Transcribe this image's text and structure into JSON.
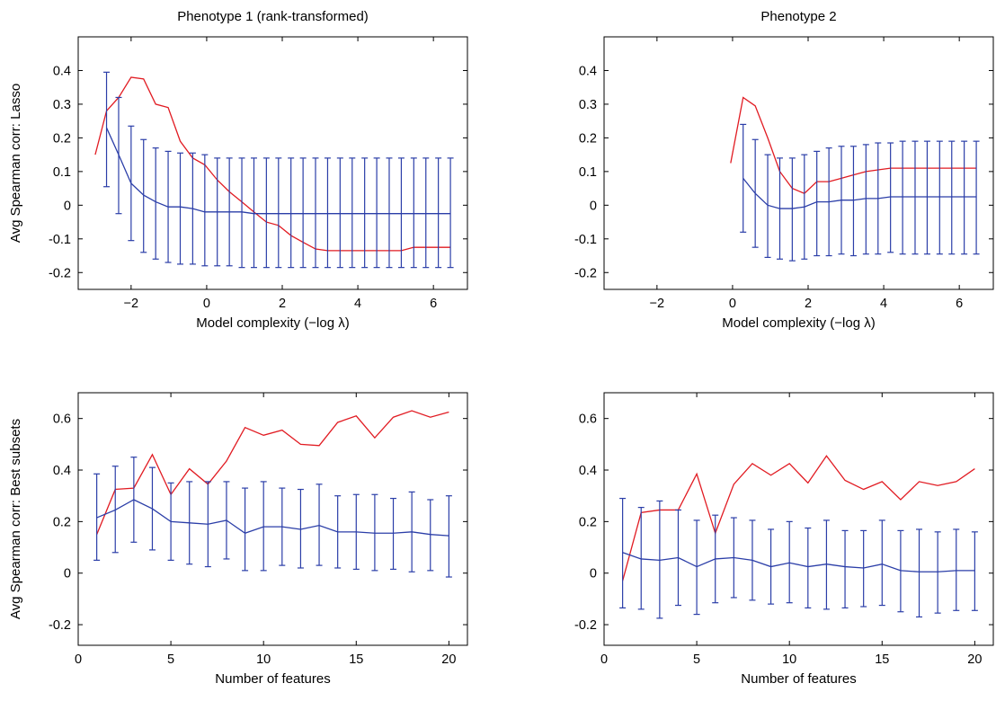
{
  "chart_data": [
    {
      "type": "line",
      "title": "Phenotype 1 (rank-transformed)",
      "xlabel": "Model complexity (−log λ)",
      "ylabel": "Avg Spearman corr: Lasso",
      "xlim": [
        -3.4,
        6.9
      ],
      "ylim": [
        -0.25,
        0.5
      ],
      "xticks": [
        -2,
        0,
        2,
        4,
        6
      ],
      "yticks": [
        -0.2,
        -0.1,
        0,
        0.1,
        0.2,
        0.3,
        0.4
      ],
      "ytick_labels": [
        "-0.2",
        "-0.1",
        "0",
        "0.1",
        "0.2",
        "0.3",
        "0.4"
      ],
      "xtick_labels": [
        "−2",
        "0",
        "2",
        "4",
        "6"
      ],
      "grid": false,
      "colors": {
        "red": "#e11b22",
        "blue": "#2b3ea8"
      },
      "series": [
        {
          "color": "red",
          "x": [
            -2.95,
            -2.65,
            -2.33,
            -2.0,
            -1.67,
            -1.35,
            -1.02,
            -0.7,
            -0.37,
            -0.05,
            0.28,
            0.6,
            0.93,
            1.25,
            1.58,
            1.9,
            2.23,
            2.55,
            2.88,
            3.2,
            3.53,
            3.85,
            4.18,
            4.5,
            4.83,
            5.15,
            5.48,
            5.8,
            6.13,
            6.45
          ],
          "y": [
            0.15,
            0.28,
            0.32,
            0.38,
            0.375,
            0.3,
            0.29,
            0.19,
            0.14,
            0.12,
            0.075,
            0.04,
            0.01,
            -0.02,
            -0.05,
            -0.06,
            -0.09,
            -0.11,
            -0.13,
            -0.135,
            -0.135,
            -0.135,
            -0.135,
            -0.135,
            -0.135,
            -0.135,
            -0.125,
            -0.125,
            -0.125,
            -0.125
          ]
        },
        {
          "color": "blue",
          "error_bars": true,
          "x": [
            -2.65,
            -2.33,
            -2.0,
            -1.67,
            -1.35,
            -1.02,
            -0.7,
            -0.37,
            -0.05,
            0.28,
            0.6,
            0.93,
            1.25,
            1.58,
            1.9,
            2.23,
            2.55,
            2.88,
            3.2,
            3.53,
            3.85,
            4.18,
            4.5,
            4.83,
            5.15,
            5.48,
            5.8,
            6.13,
            6.45
          ],
          "y": [
            0.23,
            0.15,
            0.065,
            0.03,
            0.01,
            -0.005,
            -0.005,
            -0.01,
            -0.02,
            -0.02,
            -0.02,
            -0.02,
            -0.025,
            -0.025,
            -0.025,
            -0.025,
            -0.025,
            -0.025,
            -0.025,
            -0.025,
            -0.025,
            -0.025,
            -0.025,
            -0.025,
            -0.025,
            -0.025,
            -0.025,
            -0.025,
            -0.025
          ],
          "upper": [
            0.395,
            0.32,
            0.235,
            0.195,
            0.17,
            0.16,
            0.155,
            0.155,
            0.15,
            0.14,
            0.14,
            0.14,
            0.14,
            0.14,
            0.14,
            0.14,
            0.14,
            0.14,
            0.14,
            0.14,
            0.14,
            0.14,
            0.14,
            0.14,
            0.14,
            0.14,
            0.14,
            0.14,
            0.14
          ],
          "lower": [
            0.055,
            -0.025,
            -0.105,
            -0.14,
            -0.16,
            -0.17,
            -0.175,
            -0.175,
            -0.18,
            -0.18,
            -0.18,
            -0.185,
            -0.185,
            -0.185,
            -0.185,
            -0.185,
            -0.185,
            -0.185,
            -0.185,
            -0.185,
            -0.185,
            -0.185,
            -0.185,
            -0.185,
            -0.185,
            -0.185,
            -0.185,
            -0.185,
            -0.185
          ]
        }
      ]
    },
    {
      "type": "line",
      "title": "Phenotype 2",
      "xlabel": "Model complexity (−log λ)",
      "ylabel": "",
      "xlim": [
        -3.4,
        6.9
      ],
      "ylim": [
        -0.25,
        0.5
      ],
      "xticks": [
        -2,
        0,
        2,
        4,
        6
      ],
      "yticks": [
        -0.2,
        -0.1,
        0,
        0.1,
        0.2,
        0.3,
        0.4
      ],
      "ytick_labels": [
        "-0.2",
        "-0.1",
        "0",
        "0.1",
        "0.2",
        "0.3",
        "0.4"
      ],
      "xtick_labels": [
        "−2",
        "0",
        "2",
        "4",
        "6"
      ],
      "grid": false,
      "colors": {
        "red": "#e11b22",
        "blue": "#2b3ea8"
      },
      "series": [
        {
          "color": "red",
          "x": [
            -0.05,
            0.28,
            0.6,
            0.93,
            1.25,
            1.58,
            1.9,
            2.23,
            2.55,
            2.88,
            3.2,
            3.53,
            3.85,
            4.18,
            4.5,
            4.83,
            5.15,
            5.48,
            5.8,
            6.13,
            6.45
          ],
          "y": [
            0.125,
            0.32,
            0.295,
            0.2,
            0.1,
            0.05,
            0.035,
            0.07,
            0.07,
            0.08,
            0.09,
            0.1,
            0.105,
            0.11,
            0.11,
            0.11,
            0.11,
            0.11,
            0.11,
            0.11,
            0.11
          ]
        },
        {
          "color": "blue",
          "error_bars": true,
          "x": [
            0.28,
            0.6,
            0.93,
            1.25,
            1.58,
            1.9,
            2.23,
            2.55,
            2.88,
            3.2,
            3.53,
            3.85,
            4.18,
            4.5,
            4.83,
            5.15,
            5.48,
            5.8,
            6.13,
            6.45
          ],
          "y": [
            0.08,
            0.035,
            0.0,
            -0.01,
            -0.01,
            -0.005,
            0.01,
            0.01,
            0.015,
            0.015,
            0.02,
            0.02,
            0.025,
            0.025,
            0.025,
            0.025,
            0.025,
            0.025,
            0.025,
            0.025
          ],
          "upper": [
            0.24,
            0.195,
            0.15,
            0.14,
            0.14,
            0.15,
            0.16,
            0.17,
            0.175,
            0.175,
            0.18,
            0.185,
            0.185,
            0.19,
            0.19,
            0.19,
            0.19,
            0.19,
            0.19,
            0.19
          ],
          "lower": [
            -0.08,
            -0.125,
            -0.155,
            -0.16,
            -0.165,
            -0.16,
            -0.15,
            -0.15,
            -0.145,
            -0.15,
            -0.145,
            -0.145,
            -0.14,
            -0.145,
            -0.145,
            -0.145,
            -0.145,
            -0.145,
            -0.145,
            -0.145
          ]
        }
      ]
    },
    {
      "type": "line",
      "title": "",
      "xlabel": "Number of features",
      "ylabel": "Avg Spearman corr: Best subsets",
      "xlim": [
        0,
        21
      ],
      "ylim": [
        -0.28,
        0.7
      ],
      "xticks": [
        0,
        5,
        10,
        15,
        20
      ],
      "yticks": [
        -0.2,
        0,
        0.2,
        0.4,
        0.6
      ],
      "ytick_labels": [
        "-0.2",
        "0",
        "0.2",
        "0.4",
        "0.6"
      ],
      "xtick_labels": [
        "0",
        "5",
        "10",
        "15",
        "20"
      ],
      "grid": false,
      "colors": {
        "red": "#e11b22",
        "blue": "#2b3ea8"
      },
      "series": [
        {
          "color": "red",
          "x": [
            1,
            2,
            3,
            4,
            5,
            6,
            7,
            8,
            9,
            10,
            11,
            12,
            13,
            14,
            15,
            16,
            17,
            18,
            19,
            20
          ],
          "y": [
            0.15,
            0.325,
            0.33,
            0.46,
            0.305,
            0.405,
            0.345,
            0.435,
            0.565,
            0.535,
            0.555,
            0.5,
            0.495,
            0.585,
            0.61,
            0.525,
            0.605,
            0.63,
            0.605,
            0.625
          ]
        },
        {
          "color": "blue",
          "error_bars": true,
          "x": [
            1,
            2,
            3,
            4,
            5,
            6,
            7,
            8,
            9,
            10,
            11,
            12,
            13,
            14,
            15,
            16,
            17,
            18,
            19,
            20
          ],
          "y": [
            0.215,
            0.245,
            0.285,
            0.25,
            0.2,
            0.195,
            0.19,
            0.205,
            0.155,
            0.18,
            0.18,
            0.17,
            0.185,
            0.16,
            0.16,
            0.155,
            0.155,
            0.16,
            0.15,
            0.145
          ],
          "upper": [
            0.385,
            0.415,
            0.45,
            0.41,
            0.35,
            0.355,
            0.355,
            0.355,
            0.33,
            0.355,
            0.33,
            0.325,
            0.345,
            0.3,
            0.305,
            0.305,
            0.29,
            0.315,
            0.285,
            0.3
          ],
          "lower": [
            0.05,
            0.08,
            0.12,
            0.09,
            0.05,
            0.035,
            0.025,
            0.055,
            0.01,
            0.01,
            0.03,
            0.02,
            0.03,
            0.02,
            0.015,
            0.01,
            0.015,
            0.005,
            0.01,
            -0.015
          ]
        }
      ]
    },
    {
      "type": "line",
      "title": "",
      "xlabel": "Number of features",
      "ylabel": "",
      "xlim": [
        0,
        21
      ],
      "ylim": [
        -0.28,
        0.7
      ],
      "xticks": [
        0,
        5,
        10,
        15,
        20
      ],
      "yticks": [
        -0.2,
        0,
        0.2,
        0.4,
        0.6
      ],
      "ytick_labels": [
        "-0.2",
        "0",
        "0.2",
        "0.4",
        "0.6"
      ],
      "xtick_labels": [
        "0",
        "5",
        "10",
        "15",
        "20"
      ],
      "grid": false,
      "colors": {
        "red": "#e11b22",
        "blue": "#2b3ea8"
      },
      "series": [
        {
          "color": "red",
          "x": [
            1,
            2,
            3,
            4,
            5,
            6,
            7,
            8,
            9,
            10,
            11,
            12,
            13,
            14,
            15,
            16,
            17,
            18,
            19,
            20
          ],
          "y": [
            -0.03,
            0.235,
            0.245,
            0.245,
            0.385,
            0.155,
            0.345,
            0.425,
            0.38,
            0.425,
            0.35,
            0.455,
            0.36,
            0.325,
            0.355,
            0.285,
            0.355,
            0.34,
            0.355,
            0.405
          ]
        },
        {
          "color": "blue",
          "error_bars": true,
          "x": [
            1,
            2,
            3,
            4,
            5,
            6,
            7,
            8,
            9,
            10,
            11,
            12,
            13,
            14,
            15,
            16,
            17,
            18,
            19,
            20
          ],
          "y": [
            0.08,
            0.055,
            0.05,
            0.06,
            0.025,
            0.055,
            0.06,
            0.05,
            0.025,
            0.04,
            0.025,
            0.035,
            0.025,
            0.02,
            0.035,
            0.01,
            0.005,
            0.005,
            0.01,
            0.01
          ],
          "upper": [
            0.29,
            0.255,
            0.28,
            0.245,
            0.205,
            0.225,
            0.215,
            0.205,
            0.17,
            0.2,
            0.175,
            0.205,
            0.165,
            0.165,
            0.205,
            0.165,
            0.17,
            0.16,
            0.17,
            0.16
          ],
          "lower": [
            -0.135,
            -0.14,
            -0.175,
            -0.125,
            -0.16,
            -0.115,
            -0.095,
            -0.105,
            -0.12,
            -0.115,
            -0.135,
            -0.14,
            -0.135,
            -0.13,
            -0.125,
            -0.15,
            -0.17,
            -0.155,
            -0.145,
            -0.145
          ]
        }
      ]
    }
  ]
}
